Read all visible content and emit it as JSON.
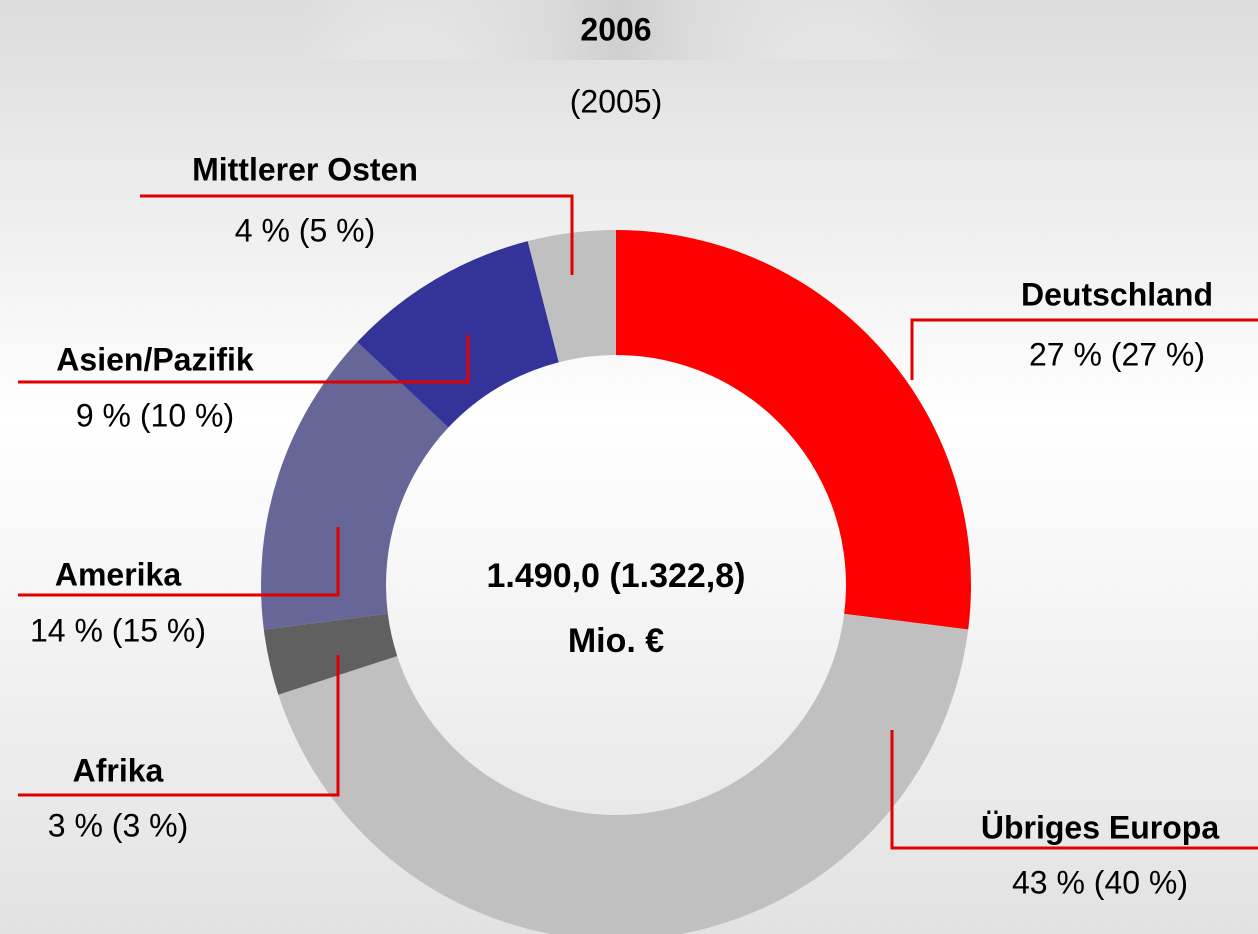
{
  "chart_data": {
    "type": "donut",
    "title": "2006",
    "subtitle": "(2005)",
    "center_text": [
      "1.490,0 (1.322,8)",
      "Mio. €"
    ],
    "categories": [
      "Deutschland",
      "Übriges Europa",
      "Afrika",
      "Amerika",
      "Asien/Pazifik",
      "Mittlerer Osten"
    ],
    "values": [
      27,
      43,
      3,
      14,
      9,
      4
    ],
    "value_labels": [
      "27 % (27 %)",
      "43 % (40 %)",
      "3 % (3 %)",
      "14 % (15 %)",
      "9 % (10 %)",
      "4 % (5 %)"
    ],
    "colors": [
      "#ff0000",
      "#c0c0c0",
      "#606060",
      "#666699",
      "#333399",
      "#c0c0c0"
    ],
    "leader_color": "#e00000"
  }
}
